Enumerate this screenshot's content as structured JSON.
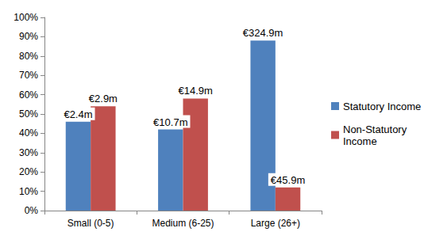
{
  "chart_data": {
    "type": "bar",
    "categories": [
      "Small (0-5)",
      "Medium (6-25)",
      "Large (26+)"
    ],
    "series": [
      {
        "name": "Statutory Income",
        "color": "#4f81bd",
        "values": [
          46,
          42,
          88
        ],
        "annotations": [
          "€2.4m",
          "€10.7m",
          "€324.9m"
        ]
      },
      {
        "name": "Non-Statutory Income",
        "color": "#c0504d",
        "values": [
          54,
          58,
          12
        ],
        "annotations": [
          "€2.9m",
          "€14.9m",
          "€45.9m"
        ]
      }
    ],
    "ylim": [
      0,
      100
    ],
    "yticks": [
      {
        "value": 0,
        "label": "0%"
      },
      {
        "value": 10,
        "label": "10%"
      },
      {
        "value": 20,
        "label": "20%"
      },
      {
        "value": 30,
        "label": "30%"
      },
      {
        "value": 40,
        "label": "40%"
      },
      {
        "value": 50,
        "label": "50%"
      },
      {
        "value": 60,
        "label": "60%"
      },
      {
        "value": 70,
        "label": "70%"
      },
      {
        "value": 80,
        "label": "80%"
      },
      {
        "value": 90,
        "label": "90%"
      },
      {
        "value": 100,
        "label": "100%"
      }
    ],
    "grid": false,
    "legend": "right"
  }
}
